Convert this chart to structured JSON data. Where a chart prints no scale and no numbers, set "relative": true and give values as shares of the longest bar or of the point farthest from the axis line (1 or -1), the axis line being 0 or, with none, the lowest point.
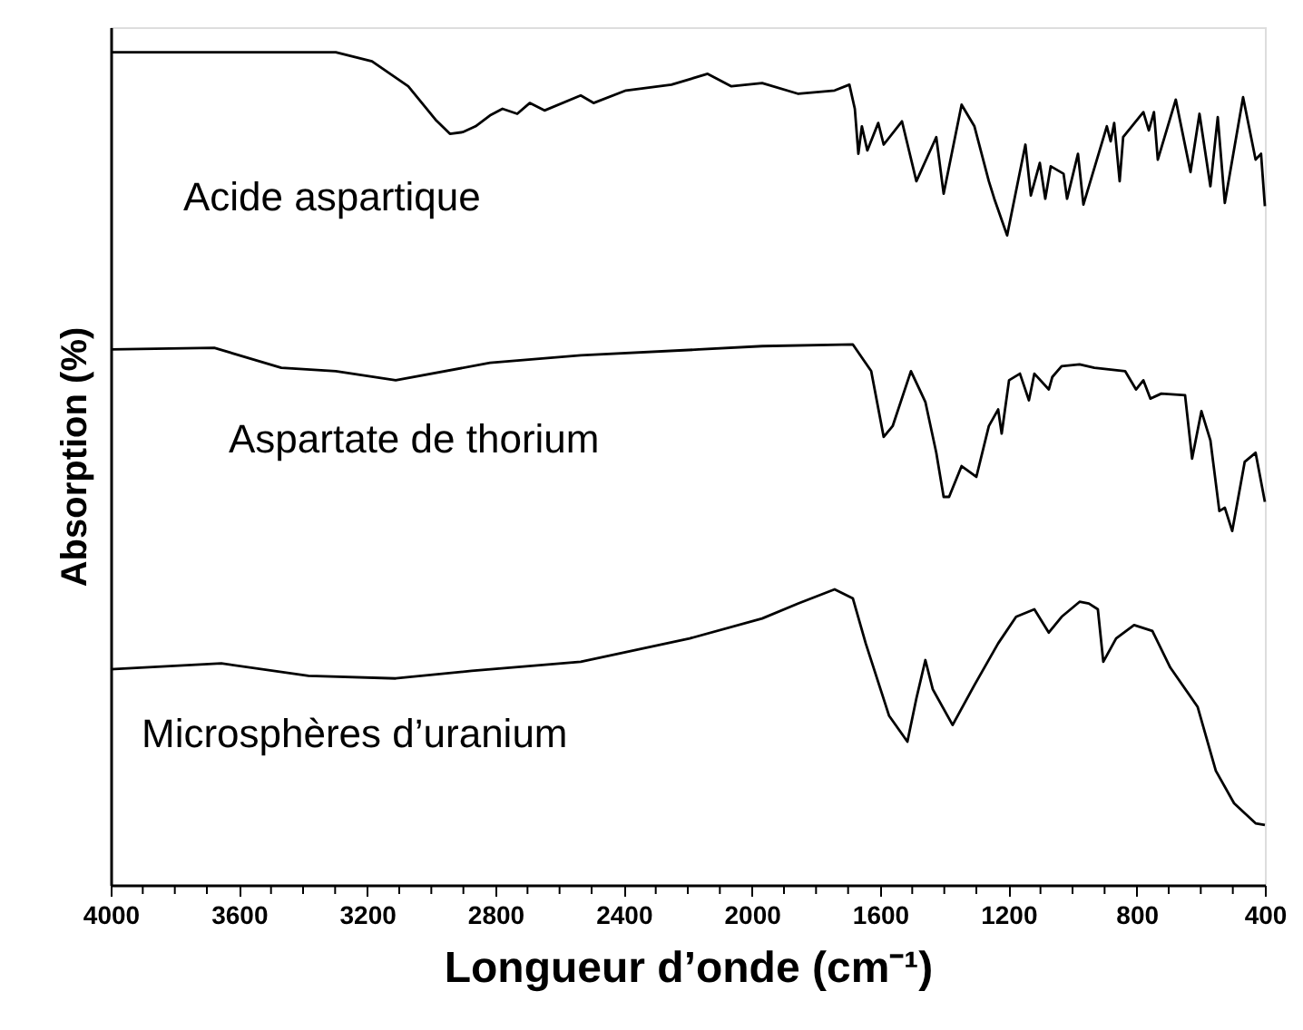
{
  "chart_data": {
    "type": "line",
    "relative": true,
    "xlabel": "Longueur d’onde (cm⁻¹)",
    "ylabel": "Absorption (%)",
    "xlim": [
      4000,
      400
    ],
    "xticks": [
      4000,
      {
        "value": 3900,
        "label": null
      },
      {
        "value": 3800,
        "label": null
      },
      {
        "value": 3700,
        "label": null
      },
      3600,
      {
        "value": 3500,
        "label": null
      },
      {
        "value": 3400,
        "label": null
      },
      {
        "value": 3300,
        "label": null
      },
      3200,
      {
        "value": 3100,
        "label": null
      },
      {
        "value": 3000,
        "label": null
      },
      {
        "value": 2900,
        "label": null
      },
      2800,
      {
        "value": 2700,
        "label": null
      },
      {
        "value": 2600,
        "label": null
      },
      {
        "value": 2500,
        "label": null
      },
      2400,
      {
        "value": 2300,
        "label": null
      },
      {
        "value": 2200,
        "label": null
      },
      {
        "value": 2100,
        "label": null
      },
      2000,
      {
        "value": 1900,
        "label": null
      },
      {
        "value": 1800,
        "label": null
      },
      {
        "value": 1700,
        "label": null
      },
      1600,
      {
        "value": 1500,
        "label": null
      },
      {
        "value": 1400,
        "label": null
      },
      {
        "value": 1300,
        "label": null
      },
      1200,
      {
        "value": 1100,
        "label": null
      },
      {
        "value": 1000,
        "label": null
      },
      {
        "value": 900,
        "label": null
      },
      800,
      {
        "value": 700,
        "label": null
      },
      {
        "value": 600,
        "label": null
      },
      {
        "value": 500,
        "label": null
      },
      400
    ],
    "tick_labels": "x",
    "grid": false,
    "marker": "none",
    "line_style": "solid",
    "series": [
      {
        "name": "Acide aspartique",
        "color": "#000000",
        "x": [
          4000,
          3666,
          3298,
          3185,
          3072,
          2987,
          2942,
          2902,
          2862,
          2817,
          2778,
          2732,
          2693,
          2647,
          2534,
          2494,
          2393,
          2251,
          2138,
          2064,
          1968,
          1855,
          1742,
          1696,
          1679,
          1668,
          1657,
          1640,
          1606,
          1589,
          1532,
          1487,
          1425,
          1402,
          1346,
          1306,
          1261,
          1244,
          1204,
          1147,
          1130,
          1102,
          1085,
          1068,
          1028,
          1017,
          983,
          966,
          893,
          881,
          870,
          853,
          842,
          779,
          762,
          746,
          734,
          678,
          632,
          604,
          570,
          547,
          525,
          468,
          429,
          412,
          400
        ],
        "values": [
          1.0,
          1.0,
          1.0,
          0.989,
          0.959,
          0.919,
          0.902,
          0.904,
          0.911,
          0.924,
          0.932,
          0.926,
          0.939,
          0.93,
          0.948,
          0.939,
          0.954,
          0.961,
          0.974,
          0.959,
          0.963,
          0.95,
          0.954,
          0.961,
          0.932,
          0.878,
          0.911,
          0.882,
          0.915,
          0.889,
          0.917,
          0.845,
          0.898,
          0.83,
          0.937,
          0.911,
          0.845,
          0.824,
          0.78,
          0.889,
          0.828,
          0.867,
          0.824,
          0.863,
          0.854,
          0.824,
          0.878,
          0.817,
          0.911,
          0.893,
          0.915,
          0.845,
          0.898,
          0.928,
          0.906,
          0.928,
          0.871,
          0.943,
          0.856,
          0.926,
          0.839,
          0.922,
          0.819,
          0.946,
          0.871,
          0.878,
          0.815
        ]
      },
      {
        "name": "Aspartate de thorium",
        "color": "#000000",
        "x": [
          4000,
          3677,
          3468,
          3298,
          3111,
          2817,
          2534,
          2166,
          1968,
          1685,
          1628,
          1589,
          1561,
          1504,
          1459,
          1425,
          1402,
          1385,
          1346,
          1300,
          1261,
          1232,
          1221,
          1198,
          1164,
          1136,
          1119,
          1074,
          1063,
          1034,
          978,
          932,
          836,
          802,
          779,
          757,
          723,
          649,
          627,
          598,
          570,
          542,
          525,
          502,
          463,
          429,
          400
        ],
        "values": [
          0.643,
          0.645,
          0.621,
          0.617,
          0.606,
          0.627,
          0.636,
          0.643,
          0.647,
          0.649,
          0.617,
          0.538,
          0.551,
          0.617,
          0.58,
          0.519,
          0.466,
          0.466,
          0.503,
          0.49,
          0.551,
          0.571,
          0.542,
          0.606,
          0.614,
          0.582,
          0.614,
          0.595,
          0.61,
          0.623,
          0.625,
          0.621,
          0.617,
          0.595,
          0.606,
          0.584,
          0.59,
          0.588,
          0.512,
          0.569,
          0.534,
          0.449,
          0.453,
          0.425,
          0.508,
          0.519,
          0.46
        ]
      },
      {
        "name": "Microsphères d’uranium",
        "color": "#000000",
        "x": [
          4000,
          3655,
          3383,
          3111,
          2874,
          2534,
          2194,
          1968,
          1855,
          1742,
          1685,
          1645,
          1572,
          1515,
          1487,
          1459,
          1436,
          1374,
          1306,
          1232,
          1176,
          1119,
          1074,
          1034,
          978,
          949,
          921,
          904,
          864,
          808,
          751,
          695,
          610,
          553,
          496,
          429,
          400
        ],
        "values": [
          0.259,
          0.266,
          0.251,
          0.248,
          0.257,
          0.268,
          0.296,
          0.32,
          0.338,
          0.355,
          0.344,
          0.29,
          0.203,
          0.172,
          0.224,
          0.27,
          0.235,
          0.192,
          0.24,
          0.29,
          0.322,
          0.331,
          0.303,
          0.322,
          0.34,
          0.338,
          0.331,
          0.268,
          0.296,
          0.312,
          0.305,
          0.261,
          0.214,
          0.137,
          0.098,
          0.074,
          0.072
        ]
      }
    ]
  }
}
